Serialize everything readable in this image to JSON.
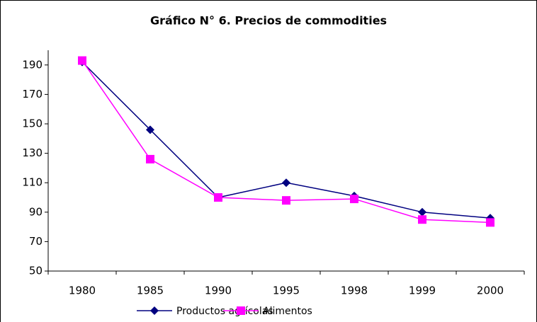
{
  "chart_data": {
    "type": "line",
    "title": "Gráfico N° 6. Precios de commodities",
    "categories": [
      "1980",
      "1985",
      "1990",
      "1995",
      "1998",
      "1999",
      "2000"
    ],
    "series": [
      {
        "name": "Productos agrícolas",
        "color": "#000080",
        "marker": "diamond",
        "values": [
          192,
          146,
          100,
          110,
          101,
          90,
          86
        ]
      },
      {
        "name": "Alimentos",
        "color": "#ff00ff",
        "marker": "square",
        "values": [
          193,
          126,
          100,
          98,
          99,
          85,
          83
        ]
      }
    ],
    "ylim": [
      50,
      200
    ],
    "yticks": [
      50,
      70,
      90,
      110,
      130,
      150,
      170,
      190
    ],
    "grid": false,
    "legend": "bottom"
  }
}
